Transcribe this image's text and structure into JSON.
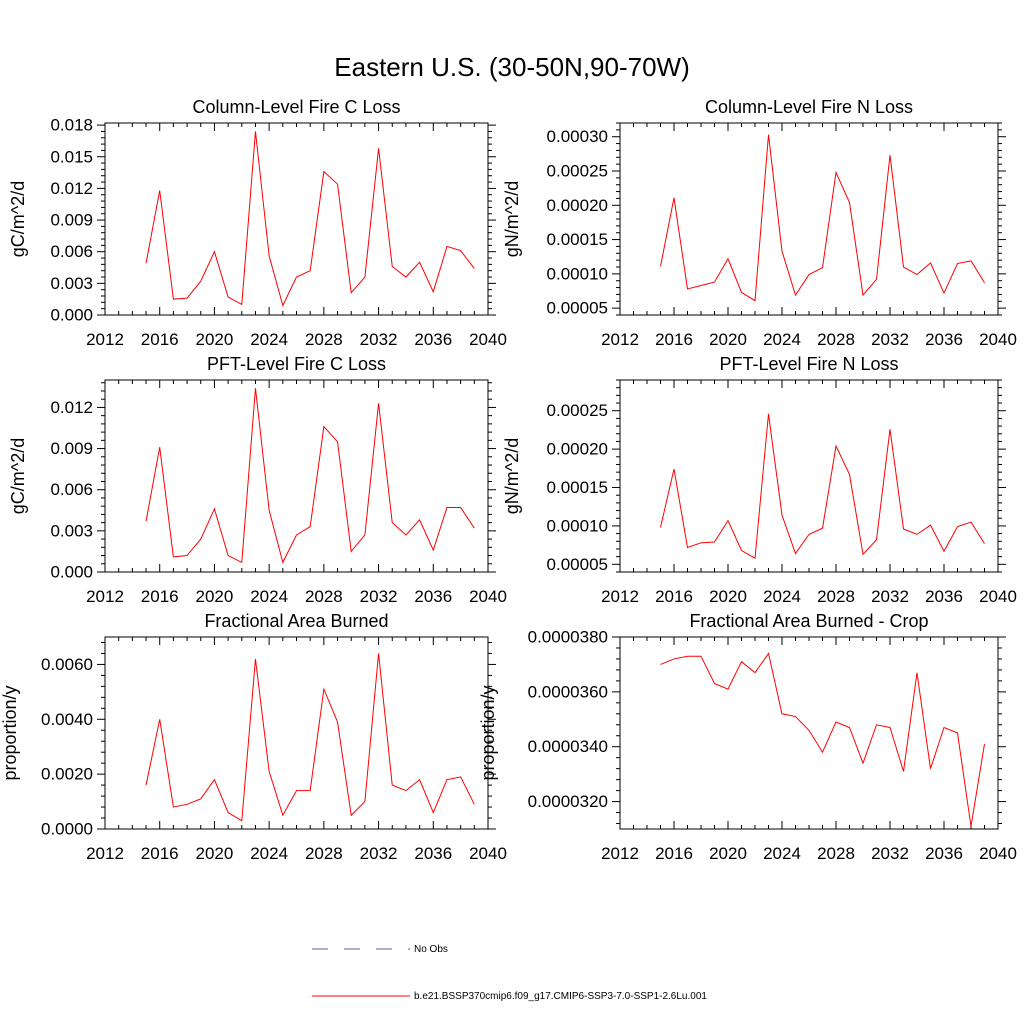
{
  "figure": {
    "title": "Eastern U.S. (30-50N,90-70W)"
  },
  "legend": {
    "entries": [
      {
        "label": "No Obs",
        "color": "#5060a0",
        "dash": "dashed"
      },
      {
        "label": "b.e21.BSSP370cmip6.f09_g17.CMIP6-SSP3-7.0-SSP1-2.6Lu.001",
        "color": "#ff0000",
        "dash": "solid"
      }
    ]
  },
  "chart_data": [
    {
      "type": "line",
      "title": "Column-Level Fire C Loss",
      "ylabel": "gC/m^2/d",
      "xlim": [
        2012,
        2040
      ],
      "ylim": [
        0,
        0.0182
      ],
      "xticks": [
        2012,
        2016,
        2020,
        2024,
        2028,
        2032,
        2036,
        2040
      ],
      "xtick_labels": [
        "2012",
        "2016",
        "2020",
        "2024",
        "2028",
        "2032",
        "2036",
        "2040"
      ],
      "yticks": [
        0,
        0.003,
        0.006,
        0.009,
        0.012,
        0.015,
        0.018
      ],
      "ytick_labels": [
        "0.000",
        "0.003",
        "0.006",
        "0.009",
        "0.012",
        "0.015",
        "0.018"
      ],
      "series": [
        {
          "color": "#ff0000",
          "x": [
            2015,
            2016,
            2017,
            2018,
            2019,
            2020,
            2021,
            2022,
            2023,
            2024,
            2025,
            2026,
            2027,
            2028,
            2029,
            2030,
            2031,
            2032,
            2033,
            2034,
            2035,
            2036,
            2037,
            2038,
            2039
          ],
          "y": [
            0.0049,
            0.0118,
            0.0015,
            0.0016,
            0.0032,
            0.006,
            0.0017,
            0.001,
            0.0174,
            0.0056,
            0.0009,
            0.0036,
            0.0042,
            0.0136,
            0.0124,
            0.0021,
            0.0036,
            0.0158,
            0.0046,
            0.0036,
            0.005,
            0.0022,
            0.0065,
            0.0061,
            0.0044
          ]
        }
      ]
    },
    {
      "type": "line",
      "title": "Column-Level Fire N Loss",
      "ylabel": "gN/m^2/d",
      "xlim": [
        2012,
        2040
      ],
      "ylim": [
        4e-05,
        0.00032
      ],
      "xticks": [
        2012,
        2016,
        2020,
        2024,
        2028,
        2032,
        2036,
        2040
      ],
      "xtick_labels": [
        "2012",
        "2016",
        "2020",
        "2024",
        "2028",
        "2032",
        "2036",
        "2040"
      ],
      "yticks": [
        5e-05,
        0.0001,
        0.00015,
        0.0002,
        0.00025,
        0.0003
      ],
      "ytick_labels": [
        "0.00005",
        "0.00010",
        "0.00015",
        "0.00020",
        "0.00025",
        "0.00030"
      ],
      "series": [
        {
          "color": "#ff0000",
          "x": [
            2015,
            2016,
            2017,
            2018,
            2019,
            2020,
            2021,
            2022,
            2023,
            2024,
            2025,
            2026,
            2027,
            2028,
            2029,
            2030,
            2031,
            2032,
            2033,
            2034,
            2035,
            2036,
            2037,
            2038,
            2039
          ],
          "y": [
            0.000111,
            0.000211,
            7.8e-05,
            8.3e-05,
            8.8e-05,
            0.000122,
            7.3e-05,
            6.1e-05,
            0.000303,
            0.000133,
            6.9e-05,
            9.9e-05,
            0.000109,
            0.000248,
            0.000204,
            6.9e-05,
            9.2e-05,
            0.000273,
            0.00011,
            9.9e-05,
            0.000116,
            7.2e-05,
            0.000115,
            0.000119,
            8.7e-05
          ]
        }
      ]
    },
    {
      "type": "line",
      "title": "PFT-Level Fire C Loss",
      "ylabel": "gC/m^2/d",
      "xlim": [
        2012,
        2040
      ],
      "ylim": [
        0,
        0.014
      ],
      "xticks": [
        2012,
        2016,
        2020,
        2024,
        2028,
        2032,
        2036,
        2040
      ],
      "xtick_labels": [
        "2012",
        "2016",
        "2020",
        "2024",
        "2028",
        "2032",
        "2036",
        "2040"
      ],
      "yticks": [
        0,
        0.003,
        0.006,
        0.009,
        0.012
      ],
      "ytick_labels": [
        "0.000",
        "0.003",
        "0.006",
        "0.009",
        "0.012"
      ],
      "series": [
        {
          "color": "#ff0000",
          "x": [
            2015,
            2016,
            2017,
            2018,
            2019,
            2020,
            2021,
            2022,
            2023,
            2024,
            2025,
            2026,
            2027,
            2028,
            2029,
            2030,
            2031,
            2032,
            2033,
            2034,
            2035,
            2036,
            2037,
            2038,
            2039
          ],
          "y": [
            0.0037,
            0.0091,
            0.0011,
            0.0012,
            0.0024,
            0.0046,
            0.0012,
            0.0007,
            0.0134,
            0.0045,
            0.0007,
            0.0027,
            0.0033,
            0.0106,
            0.0095,
            0.0015,
            0.0027,
            0.0123,
            0.0036,
            0.0027,
            0.0038,
            0.0016,
            0.0047,
            0.0047,
            0.0032
          ]
        }
      ]
    },
    {
      "type": "line",
      "title": "PFT-Level Fire N Loss",
      "ylabel": "gN/m^2/d",
      "xlim": [
        2012,
        2040
      ],
      "ylim": [
        4e-05,
        0.00029
      ],
      "xticks": [
        2012,
        2016,
        2020,
        2024,
        2028,
        2032,
        2036,
        2040
      ],
      "xtick_labels": [
        "2012",
        "2016",
        "2020",
        "2024",
        "2028",
        "2032",
        "2036",
        "2040"
      ],
      "yticks": [
        5e-05,
        0.0001,
        0.00015,
        0.0002,
        0.00025
      ],
      "ytick_labels": [
        "0.00005",
        "0.00010",
        "0.00015",
        "0.00020",
        "0.00025"
      ],
      "series": [
        {
          "color": "#ff0000",
          "x": [
            2015,
            2016,
            2017,
            2018,
            2019,
            2020,
            2021,
            2022,
            2023,
            2024,
            2025,
            2026,
            2027,
            2028,
            2029,
            2030,
            2031,
            2032,
            2033,
            2034,
            2035,
            2036,
            2037,
            2038,
            2039
          ],
          "y": [
            9.8e-05,
            0.000174,
            7.2e-05,
            7.8e-05,
            7.9e-05,
            0.000107,
            6.8e-05,
            5.8e-05,
            0.000246,
            0.000114,
            6.4e-05,
            8.9e-05,
            9.7e-05,
            0.000204,
            0.000167,
            6.3e-05,
            8.2e-05,
            0.000226,
            9.6e-05,
            8.9e-05,
            0.000101,
            6.7e-05,
            9.9e-05,
            0.000105,
            7.7e-05
          ]
        }
      ]
    },
    {
      "type": "line",
      "title": "Fractional Area Burned",
      "ylabel": "proportion/y",
      "xlim": [
        2012,
        2040
      ],
      "ylim": [
        0,
        0.007
      ],
      "xticks": [
        2012,
        2016,
        2020,
        2024,
        2028,
        2032,
        2036,
        2040
      ],
      "xtick_labels": [
        "2012",
        "2016",
        "2020",
        "2024",
        "2028",
        "2032",
        "2036",
        "2040"
      ],
      "yticks": [
        0,
        0.002,
        0.004,
        0.006
      ],
      "ytick_labels": [
        "0.0000",
        "0.0020",
        "0.0040",
        "0.0060"
      ],
      "series": [
        {
          "color": "#ff0000",
          "x": [
            2015,
            2016,
            2017,
            2018,
            2019,
            2020,
            2021,
            2022,
            2023,
            2024,
            2025,
            2026,
            2027,
            2028,
            2029,
            2030,
            2031,
            2032,
            2033,
            2034,
            2035,
            2036,
            2037,
            2038,
            2039
          ],
          "y": [
            0.0016,
            0.004,
            0.0008,
            0.0009,
            0.0011,
            0.0018,
            0.0006,
            0.0003,
            0.0062,
            0.0021,
            0.0005,
            0.0014,
            0.0014,
            0.0051,
            0.0039,
            0.0005,
            0.001,
            0.0064,
            0.0016,
            0.0014,
            0.0018,
            0.0006,
            0.0018,
            0.0019,
            0.0009
          ]
        }
      ]
    },
    {
      "type": "line",
      "title": "Fractional Area Burned - Crop",
      "ylabel": "proportion/y",
      "xlim": [
        2012,
        2040
      ],
      "ylim": [
        3.1e-05,
        3.8e-05
      ],
      "xticks": [
        2012,
        2016,
        2020,
        2024,
        2028,
        2032,
        2036,
        2040
      ],
      "xtick_labels": [
        "2012",
        "2016",
        "2020",
        "2024",
        "2028",
        "2032",
        "2036",
        "2040"
      ],
      "yticks": [
        3.2e-05,
        3.4e-05,
        3.6e-05,
        3.8e-05
      ],
      "ytick_labels": [
        "0.0000320",
        "0.0000340",
        "0.0000360",
        "0.0000380"
      ],
      "series": [
        {
          "color": "#ff0000",
          "x": [
            2015,
            2016,
            2017,
            2018,
            2019,
            2020,
            2021,
            2022,
            2023,
            2024,
            2025,
            2026,
            2027,
            2028,
            2029,
            2030,
            2031,
            2032,
            2033,
            2034,
            2035,
            2036,
            2037,
            2038,
            2039
          ],
          "y": [
            3.7e-05,
            3.72e-05,
            3.73e-05,
            3.73e-05,
            3.63e-05,
            3.61e-05,
            3.71e-05,
            3.67e-05,
            3.74e-05,
            3.52e-05,
            3.51e-05,
            3.46e-05,
            3.38e-05,
            3.49e-05,
            3.47e-05,
            3.34e-05,
            3.48e-05,
            3.47e-05,
            3.31e-05,
            3.67e-05,
            3.32e-05,
            3.47e-05,
            3.45e-05,
            3.11e-05,
            3.41e-05
          ]
        }
      ]
    }
  ]
}
